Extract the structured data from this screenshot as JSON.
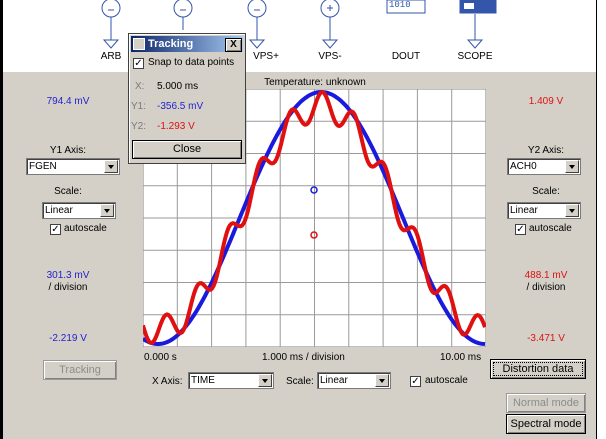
{
  "symbols": {
    "arb": "ARB",
    "vps_plus": "VPS+",
    "vps_minus": "VPS-",
    "dout": "DOUT",
    "dout_value": "1010",
    "scope": "SCOPE"
  },
  "plot": {
    "title": "Temperature: unknown",
    "x_start": "0.000 s",
    "x_division": "1.000 ms / division",
    "x_end": "10.00 ms"
  },
  "left": {
    "top_value": "794.4 mV",
    "axis_label": "Y1 Axis:",
    "axis_value": "FGEN",
    "scale_label": "Scale:",
    "scale_value": "Linear",
    "autoscale_label": "autoscale",
    "division_value": "301.3 mV",
    "division_unit": "/ division",
    "bottom_value": "-2.219 V",
    "tracking_button": "Tracking"
  },
  "right": {
    "top_value": "1.409 V",
    "axis_label": "Y2 Axis:",
    "axis_value": "ACH0",
    "scale_label": "Scale:",
    "scale_value": "Linear",
    "autoscale_label": "autoscale",
    "division_value": "488.1 mV",
    "division_unit": "/ division",
    "bottom_value": "-3.471 V",
    "distortion_button": "Distortion data",
    "normal_mode_button": "Normal mode",
    "spectral_mode_button": "Spectral mode"
  },
  "bottom": {
    "x_axis_label": "X Axis:",
    "x_axis_value": "TIME",
    "scale_label": "Scale:",
    "scale_value": "Linear",
    "autoscale_label": "autoscale"
  },
  "tracking_dialog": {
    "title": "Tracking",
    "close_x": "X",
    "snap_label": "Snap to data points",
    "x_label": "X:",
    "x_value": "5.000 ms",
    "y1_label": "Y1:",
    "y1_value": "-356.5 mV",
    "y2_label": "Y2:",
    "y2_value": "-1.293 V",
    "close_button": "Close"
  },
  "colors": {
    "y1_trace": "#1a1adc",
    "y2_trace": "#e01010",
    "panel_bg": "#d4d0c8"
  }
}
